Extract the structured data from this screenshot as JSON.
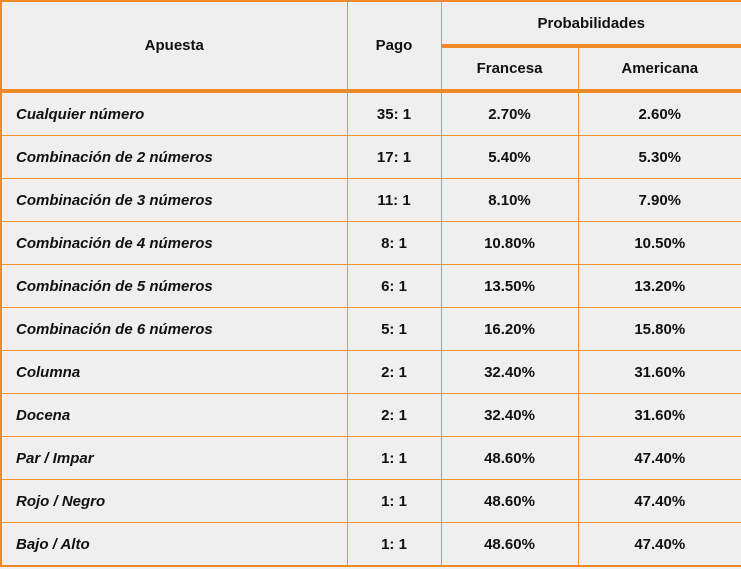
{
  "header": {
    "bet_col": "Apuesta",
    "pay_col": "Pago",
    "prob_group": "Probabilidades",
    "french_col": "Francesa",
    "american_col": "Americana"
  },
  "rows": [
    {
      "bet": "Cualquier número",
      "pay": "35: 1",
      "french": "2.70%",
      "american": "2.60%"
    },
    {
      "bet": "Combinación de 2 números",
      "pay": "17: 1",
      "french": "5.40%",
      "american": "5.30%"
    },
    {
      "bet": "Combinación de 3 números",
      "pay": "11: 1",
      "french": "8.10%",
      "american": "7.90%"
    },
    {
      "bet": "Combinación de 4 números",
      "pay": "8: 1",
      "french": "10.80%",
      "american": "10.50%"
    },
    {
      "bet": "Combinación de 5 números",
      "pay": "6: 1",
      "french": "13.50%",
      "american": "13.20%"
    },
    {
      "bet": "Combinación de 6 números",
      "pay": "5: 1",
      "french": "16.20%",
      "american": "15.80%"
    },
    {
      "bet": "Columna",
      "pay": "2: 1",
      "french": "32.40%",
      "american": "31.60%"
    },
    {
      "bet": "Docena",
      "pay": "2: 1",
      "french": "32.40%",
      "american": "31.60%"
    },
    {
      "bet": "Par / Impar",
      "pay": "1: 1",
      "french": "48.60%",
      "american": "47.40%"
    },
    {
      "bet": "Rojo / Negro",
      "pay": "1: 1",
      "french": "48.60%",
      "american": "47.40%"
    },
    {
      "bet": "Bajo / Alto",
      "pay": "1: 1",
      "french": "48.60%",
      "american": "47.40%"
    }
  ],
  "colors": {
    "border": "#f0932b",
    "background": "#efefef",
    "text": "#111111"
  }
}
